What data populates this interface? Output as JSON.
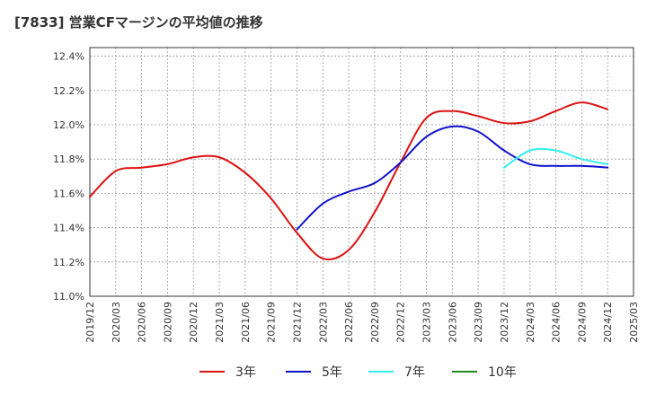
{
  "chart_data": {
    "type": "line",
    "title": "[7833]  営業CFマージンの平均値の推移",
    "xlabel": "",
    "ylabel": "",
    "ylim": [
      11.0,
      12.45
    ],
    "y_ticks": [
      "11.0%",
      "11.2%",
      "11.4%",
      "11.6%",
      "11.8%",
      "12.0%",
      "12.2%",
      "12.4%"
    ],
    "y_tick_values": [
      11.0,
      11.2,
      11.4,
      11.6,
      11.8,
      12.0,
      12.2,
      12.4
    ],
    "x_ticks": [
      "2019/12",
      "2020/03",
      "2020/06",
      "2020/09",
      "2020/12",
      "2021/03",
      "2021/06",
      "2021/09",
      "2021/12",
      "2022/03",
      "2022/06",
      "2022/09",
      "2022/12",
      "2023/03",
      "2023/06",
      "2023/09",
      "2023/12",
      "2024/03",
      "2024/06",
      "2024/09",
      "2024/12",
      "2025/03"
    ],
    "x": [
      "2019/12",
      "2020/03",
      "2020/06",
      "2020/09",
      "2020/12",
      "2021/03",
      "2021/06",
      "2021/09",
      "2021/12",
      "2022/03",
      "2022/06",
      "2022/09",
      "2022/12",
      "2023/03",
      "2023/06",
      "2023/09",
      "2023/12",
      "2024/03",
      "2024/06",
      "2024/09",
      "2024/12"
    ],
    "grid": true,
    "legend_position": "bottom",
    "series": [
      {
        "name": "3年",
        "color": "#dd1111",
        "values": [
          11.58,
          11.73,
          11.75,
          11.77,
          11.81,
          11.81,
          11.72,
          11.57,
          11.37,
          11.22,
          11.27,
          11.49,
          11.78,
          12.04,
          12.08,
          12.05,
          12.01,
          12.02,
          12.08,
          12.13,
          12.09
        ]
      },
      {
        "name": "5年",
        "color": "#1111cc",
        "values": [
          null,
          null,
          null,
          null,
          null,
          null,
          null,
          null,
          11.39,
          11.54,
          11.61,
          11.66,
          11.78,
          11.93,
          11.99,
          11.96,
          11.85,
          11.77,
          11.76,
          11.76,
          11.75
        ]
      },
      {
        "name": "7年",
        "color": "#33eeee",
        "values": [
          null,
          null,
          null,
          null,
          null,
          null,
          null,
          null,
          null,
          null,
          null,
          null,
          null,
          null,
          null,
          null,
          11.75,
          11.85,
          11.85,
          11.8,
          11.77
        ]
      },
      {
        "name": "10年",
        "color": "#228822",
        "values": [
          null,
          null,
          null,
          null,
          null,
          null,
          null,
          null,
          null,
          null,
          null,
          null,
          null,
          null,
          null,
          null,
          null,
          null,
          null,
          null,
          null
        ]
      }
    ]
  }
}
